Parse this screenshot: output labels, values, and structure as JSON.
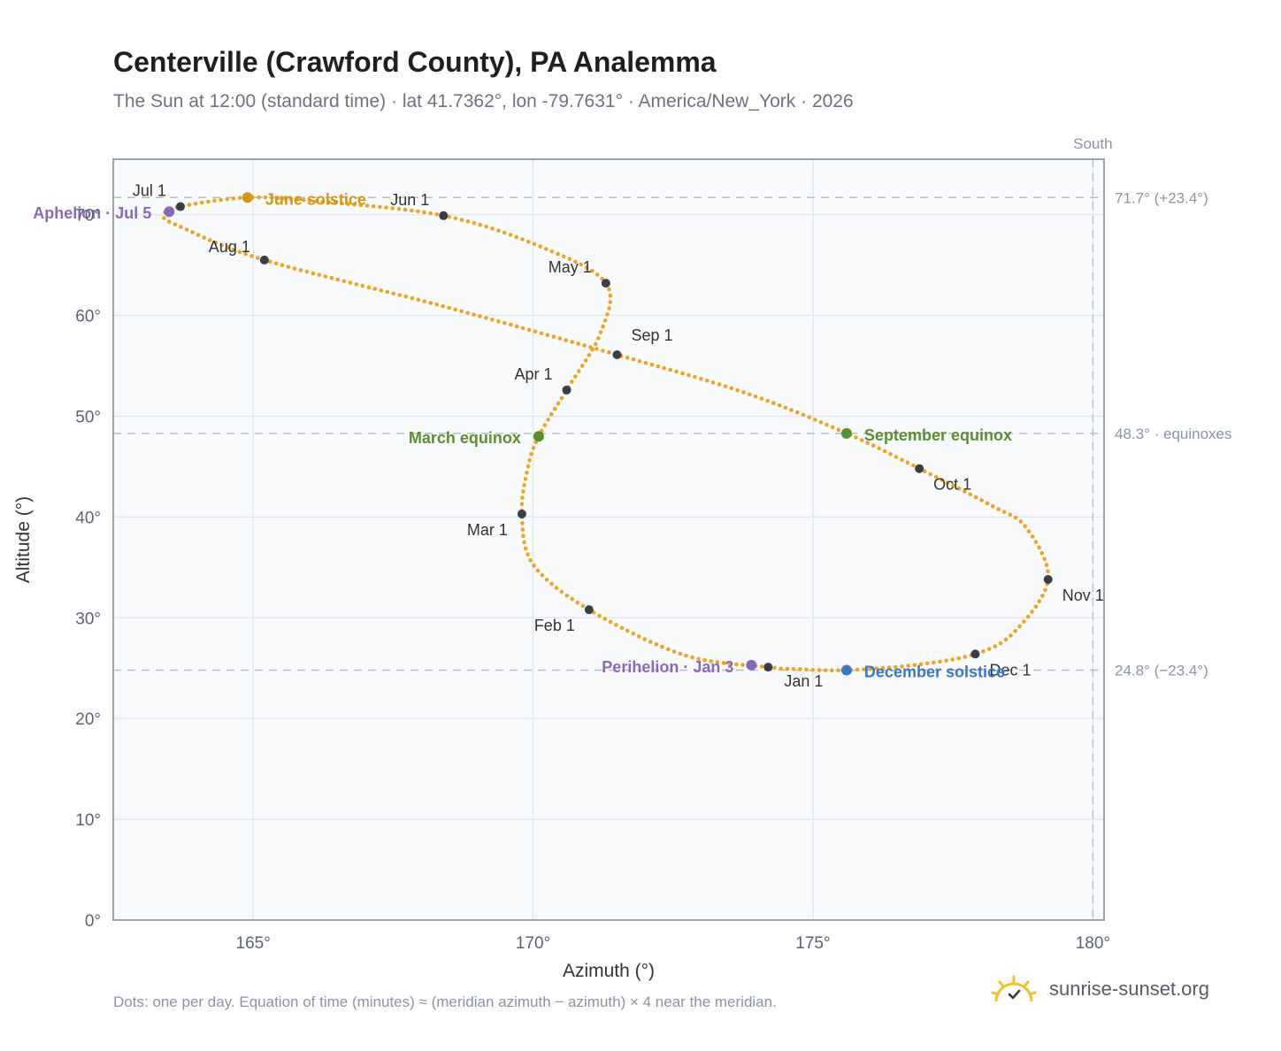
{
  "header": {
    "title": "Centerville (Crawford County), PA Analemma",
    "subtitle": "The Sun at 12:00 (standard time) · lat 41.7362°, lon -79.7631° · America/New_York · 2026"
  },
  "footer": {
    "note": "Dots: one per day. Equation of time (minutes) ≈ (meridian azimuth − azimuth) × 4 near the meridian.",
    "brand": "sunrise-sunset.org"
  },
  "colors": {
    "analemma": "#f0a224",
    "month_dot": "#3a3f47",
    "june": "#d49614",
    "equinox": "#5a8f2f",
    "december": "#3b78c2",
    "apsis": "#8c68b8",
    "grid": "#e3e8ee",
    "plot_bg": "#f8fafc",
    "frame": "#9aa3ae",
    "ref_line": "#b6bec8"
  },
  "chart_data": {
    "type": "scatter",
    "xlabel": "Azimuth (°)",
    "ylabel": "Altitude (°)",
    "xlim": [
      162.5,
      180.2
    ],
    "ylim": [
      0,
      75.5
    ],
    "x_ticks": [
      165,
      170,
      175,
      180
    ],
    "x_tick_labels": [
      "165°",
      "170°",
      "175°",
      "180°"
    ],
    "y_ticks": [
      0,
      10,
      20,
      30,
      40,
      50,
      60,
      70
    ],
    "y_tick_labels": [
      "0°",
      "10°",
      "20°",
      "30°",
      "40°",
      "50°",
      "60°",
      "70°"
    ],
    "grid": true,
    "reference_lines": {
      "horizontal": [
        {
          "y": 71.7,
          "label": "71.7° (+23.4°)"
        },
        {
          "y": 48.3,
          "label": "48.3° · equinoxes"
        },
        {
          "y": 24.8,
          "label": "24.8° (−23.4°)"
        }
      ],
      "vertical": {
        "x": 180,
        "label": "South"
      }
    },
    "path_nodes": [
      {
        "x": 174.2,
        "y": 25.1
      },
      {
        "x": 172.7,
        "y": 26.3
      },
      {
        "x": 171.0,
        "y": 30.8
      },
      {
        "x": 170.0,
        "y": 35.3
      },
      {
        "x": 169.8,
        "y": 40.3
      },
      {
        "x": 169.9,
        "y": 44.7
      },
      {
        "x": 170.1,
        "y": 48.0
      },
      {
        "x": 170.6,
        "y": 52.6
      },
      {
        "x": 171.2,
        "y": 58.2
      },
      {
        "x": 171.3,
        "y": 63.2
      },
      {
        "x": 170.1,
        "y": 66.9
      },
      {
        "x": 168.4,
        "y": 69.9
      },
      {
        "x": 166.2,
        "y": 71.3
      },
      {
        "x": 164.9,
        "y": 71.7
      },
      {
        "x": 163.7,
        "y": 70.8
      },
      {
        "x": 163.4,
        "y": 69.9
      },
      {
        "x": 163.7,
        "y": 68.8
      },
      {
        "x": 165.2,
        "y": 65.5
      },
      {
        "x": 168.4,
        "y": 60.9
      },
      {
        "x": 171.5,
        "y": 56.1
      },
      {
        "x": 173.8,
        "y": 52.3
      },
      {
        "x": 175.6,
        "y": 48.3
      },
      {
        "x": 176.9,
        "y": 44.8
      },
      {
        "x": 178.2,
        "y": 41.1
      },
      {
        "x": 178.8,
        "y": 39.0
      },
      {
        "x": 179.2,
        "y": 33.8
      },
      {
        "x": 178.6,
        "y": 28.6
      },
      {
        "x": 177.9,
        "y": 26.4
      },
      {
        "x": 176.8,
        "y": 25.3
      },
      {
        "x": 175.6,
        "y": 24.8
      },
      {
        "x": 174.7,
        "y": 24.9
      },
      {
        "x": 174.2,
        "y": 25.1
      }
    ],
    "month_markers": [
      {
        "label": "Jan 1",
        "x": 174.2,
        "y": 25.1
      },
      {
        "label": "Feb 1",
        "x": 171.0,
        "y": 30.8
      },
      {
        "label": "Mar 1",
        "x": 169.8,
        "y": 40.3
      },
      {
        "label": "Apr 1",
        "x": 170.6,
        "y": 52.6
      },
      {
        "label": "May 1",
        "x": 171.3,
        "y": 63.2
      },
      {
        "label": "Jun 1",
        "x": 168.4,
        "y": 69.9
      },
      {
        "label": "Jul 1",
        "x": 163.7,
        "y": 70.8
      },
      {
        "label": "Aug 1",
        "x": 165.2,
        "y": 65.5
      },
      {
        "label": "Sep 1",
        "x": 171.5,
        "y": 56.1
      },
      {
        "label": "Oct 1",
        "x": 176.9,
        "y": 44.8
      },
      {
        "label": "Nov 1",
        "x": 179.2,
        "y": 33.8
      },
      {
        "label": "Dec 1",
        "x": 177.9,
        "y": 26.4
      }
    ],
    "events": [
      {
        "label": "June solstice",
        "x": 164.9,
        "y": 71.7,
        "color": "#d49614"
      },
      {
        "label": "March equinox",
        "x": 170.1,
        "y": 48.0,
        "color": "#5a8f2f"
      },
      {
        "label": "September equinox",
        "x": 175.6,
        "y": 48.3,
        "color": "#5a8f2f"
      },
      {
        "label": "December solstice",
        "x": 175.6,
        "y": 24.8,
        "color": "#3b78c2"
      },
      {
        "label": "Aphelion · Jul 5",
        "x": 163.5,
        "y": 70.3,
        "color": "#8c68b8"
      },
      {
        "label": "Perihelion · Jan 3",
        "x": 173.9,
        "y": 25.3,
        "color": "#8c68b8"
      }
    ]
  }
}
